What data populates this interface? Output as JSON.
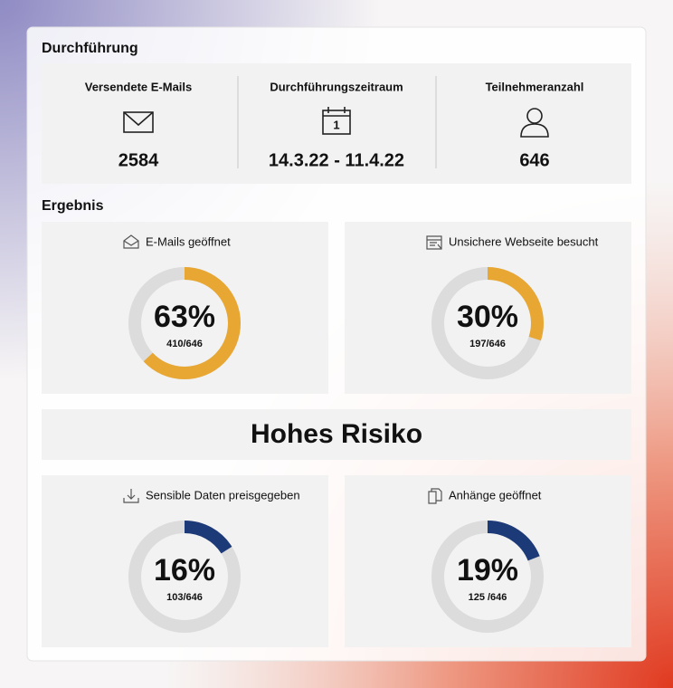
{
  "execution": {
    "title": "Durchführung",
    "stats": [
      {
        "label": "Versendete E-Mails",
        "value": "2584"
      },
      {
        "label": "Durchführungszeitraum",
        "value": "14.3.22 - 11.4.22",
        "icon_text": "1"
      },
      {
        "label": "Teilnehmeranzahl",
        "value": "646"
      }
    ]
  },
  "result": {
    "title": "Ergebnis",
    "risk": "Hohes Risiko",
    "cards": [
      {
        "label": "E-Mails geöffnet",
        "percent": 63,
        "percent_label": "63%",
        "count": "410/646",
        "color": "#e8a733"
      },
      {
        "label": "Unsichere Webseite besucht",
        "percent": 30,
        "percent_label": "30%",
        "count": "197/646",
        "color": "#e8a733"
      },
      {
        "label": "Sensible Daten preisgegeben",
        "percent": 16,
        "percent_label": "16%",
        "count": "103/646",
        "color": "#1d3a78"
      },
      {
        "label": "Anhänge geöffnet",
        "percent": 19,
        "percent_label": "19%",
        "count": "125 /646",
        "color": "#1d3a78"
      }
    ]
  }
}
